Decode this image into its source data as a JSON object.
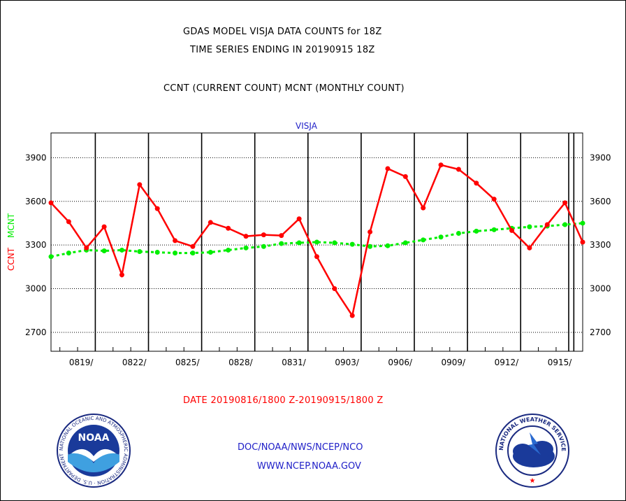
{
  "titles": {
    "line1": "GDAS MODEL VISJA DATA COUNTS for 18Z",
    "line2": "TIME SERIES ENDING IN 20190915 18Z",
    "line3": "CCNT (CURRENT COUNT) MCNT (MONTHLY COUNT)"
  },
  "date_range": "DATE 20190816/1800 Z-20190915/1800 Z",
  "footer": {
    "link1": "DOC/NOAA/NWS/NCEP/NCO",
    "link2": "WWW.NCEP.NOAA.GOV"
  },
  "logos": {
    "noaa": {
      "text": "NOAA",
      "ring_text": "NATIONAL OCEANIC AND ATMOSPHERIC ADMINISTRATION · U.S. DEPARTMENT OF COMMERCE"
    },
    "nws": {
      "ring_text": "NATIONAL WEATHER SERVICE"
    }
  },
  "colors": {
    "ccnt": "#ff0000",
    "mcnt": "#00ee00",
    "station_label": "#2020c8",
    "link": "#2020c8"
  },
  "chart_data": {
    "type": "line",
    "title": "VISJA",
    "ylabel_series": [
      "CCNT",
      "MCNT"
    ],
    "ylim": [
      2570,
      4070
    ],
    "yticks": [
      2700,
      3000,
      3300,
      3600,
      3900
    ],
    "x_ticks": [
      "0819/",
      "0822/",
      "0825/",
      "0828/",
      "0831/",
      "0903/",
      "0906/",
      "0909/",
      "0912/",
      "0915/"
    ],
    "grid": true,
    "series": [
      {
        "name": "CCNT",
        "x": [
          "0816",
          "0817",
          "0818",
          "0819",
          "0820",
          "0821",
          "0822",
          "0823",
          "0824",
          "0825",
          "0826",
          "0827",
          "0828",
          "0829",
          "0830",
          "0831",
          "0901",
          "0902",
          "0903",
          "0904",
          "0905",
          "0906",
          "0907",
          "0908",
          "0909",
          "0910",
          "0911",
          "0912",
          "0913",
          "0914",
          "0915"
        ],
        "values": [
          3590,
          3460,
          3280,
          3425,
          3095,
          3715,
          3550,
          3330,
          3290,
          3455,
          3415,
          3360,
          3370,
          3365,
          3480,
          3220,
          3000,
          2815,
          3390,
          3825,
          3770,
          3555,
          3850,
          3820,
          3725,
          3615,
          3400,
          3280,
          3440,
          3590,
          3320
        ]
      },
      {
        "name": "MCNT",
        "x": [
          "0816",
          "0817",
          "0818",
          "0819",
          "0820",
          "0821",
          "0822",
          "0823",
          "0824",
          "0825",
          "0826",
          "0827",
          "0828",
          "0829",
          "0830",
          "0831",
          "0901",
          "0902",
          "0903",
          "0904",
          "0905",
          "0906",
          "0907",
          "0908",
          "0909",
          "0910",
          "0911",
          "0912",
          "0913",
          "0914",
          "0915"
        ],
        "values": [
          3220,
          3245,
          3265,
          3260,
          3265,
          3255,
          3250,
          3245,
          3245,
          3250,
          3265,
          3280,
          3290,
          3310,
          3315,
          3320,
          3315,
          3305,
          3290,
          3295,
          3315,
          3335,
          3355,
          3380,
          3395,
          3405,
          3415,
          3425,
          3430,
          3440,
          3450
        ]
      }
    ]
  }
}
